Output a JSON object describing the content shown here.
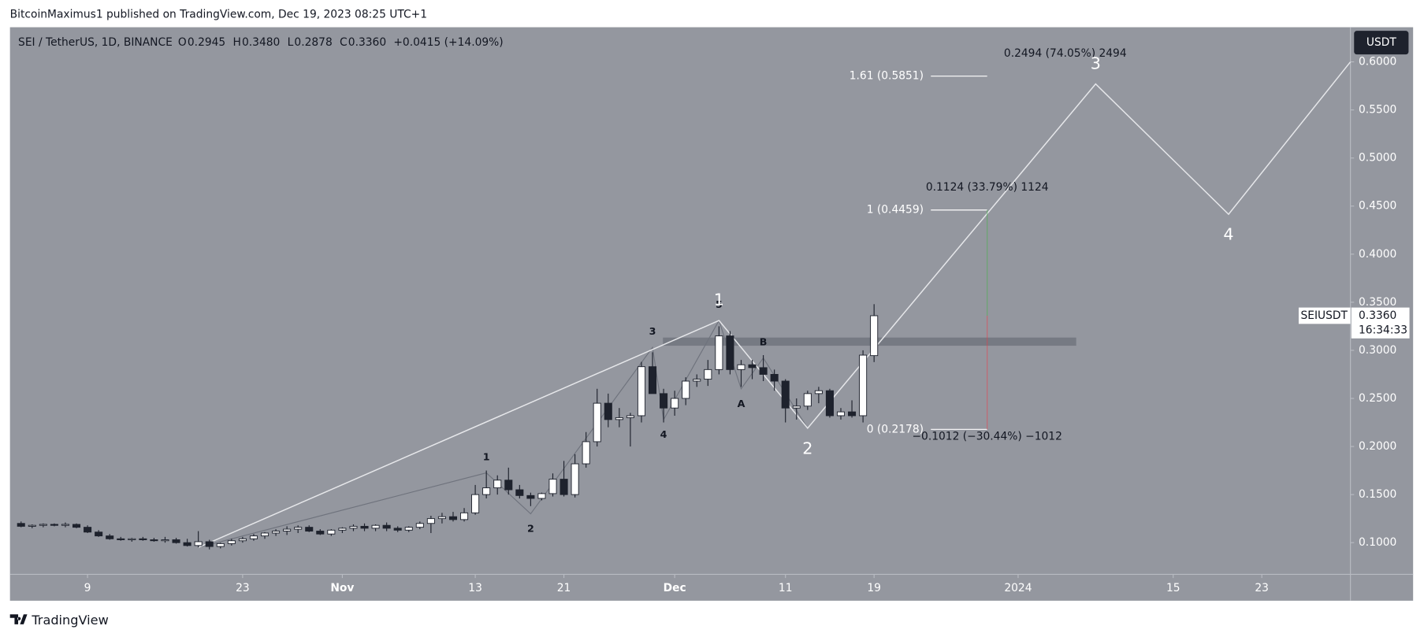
{
  "header": {
    "published": "BitcoinMaximus1 published on TradingView.com, Dec 19, 2023 08:25 UTC+1"
  },
  "footer": {
    "brand": "TradingView"
  },
  "chart_data": {
    "type": "candlestick",
    "legend": {
      "symbol": "SEI / TetherUS, 1D, BINANCE",
      "fields": [
        {
          "key": "O",
          "value": "0.2945"
        },
        {
          "key": "H",
          "value": "0.3480"
        },
        {
          "key": "L",
          "value": "0.2878"
        },
        {
          "key": "C",
          "value": "0.3360"
        }
      ],
      "change": "+0.0415 (+14.09%)"
    },
    "currency": "USDT",
    "last_price": {
      "symbol": "SEIUSDT",
      "value": 0.336,
      "label": "0.3360",
      "countdown": "16:34:33"
    },
    "x": [
      "2023-10-03",
      "2023-10-04",
      "2023-10-05",
      "2023-10-06",
      "2023-10-07",
      "2023-10-08",
      "2023-10-09",
      "2023-10-10",
      "2023-10-11",
      "2023-10-12",
      "2023-10-13",
      "2023-10-14",
      "2023-10-15",
      "2023-10-16",
      "2023-10-17",
      "2023-10-18",
      "2023-10-19",
      "2023-10-20",
      "2023-10-21",
      "2023-10-22",
      "2023-10-23",
      "2023-10-24",
      "2023-10-25",
      "2023-10-26",
      "2023-10-27",
      "2023-10-28",
      "2023-10-29",
      "2023-10-30",
      "2023-10-31",
      "2023-11-01",
      "2023-11-02",
      "2023-11-03",
      "2023-11-04",
      "2023-11-05",
      "2023-11-06",
      "2023-11-07",
      "2023-11-08",
      "2023-11-09",
      "2023-11-10",
      "2023-11-11",
      "2023-11-12",
      "2023-11-13",
      "2023-11-14",
      "2023-11-15",
      "2023-11-16",
      "2023-11-17",
      "2023-11-18",
      "2023-11-19",
      "2023-11-20",
      "2023-11-21",
      "2023-11-22",
      "2023-11-23",
      "2023-11-24",
      "2023-11-25",
      "2023-11-26",
      "2023-11-27",
      "2023-11-28",
      "2023-11-29",
      "2023-11-30",
      "2023-12-01",
      "2023-12-02",
      "2023-12-03",
      "2023-12-04",
      "2023-12-05",
      "2023-12-06",
      "2023-12-07",
      "2023-12-08",
      "2023-12-09",
      "2023-12-10",
      "2023-12-11",
      "2023-12-12",
      "2023-12-13",
      "2023-12-14",
      "2023-12-15",
      "2023-12-16",
      "2023-12-17",
      "2023-12-18",
      "2023-12-19"
    ],
    "open": [
      0.12,
      0.117,
      0.118,
      0.119,
      0.118,
      0.119,
      0.116,
      0.111,
      0.107,
      0.104,
      0.103,
      0.104,
      0.103,
      0.102,
      0.103,
      0.1,
      0.097,
      0.101,
      0.096,
      0.099,
      0.102,
      0.104,
      0.107,
      0.11,
      0.112,
      0.114,
      0.116,
      0.112,
      0.109,
      0.113,
      0.115,
      0.117,
      0.115,
      0.118,
      0.115,
      0.113,
      0.116,
      0.12,
      0.125,
      0.127,
      0.124,
      0.131,
      0.15,
      0.157,
      0.165,
      0.155,
      0.149,
      0.146,
      0.151,
      0.166,
      0.15,
      0.182,
      0.205,
      0.245,
      0.228,
      0.23,
      0.232,
      0.283,
      0.255,
      0.24,
      0.25,
      0.268,
      0.27,
      0.28,
      0.315,
      0.28,
      0.285,
      0.282,
      0.275,
      0.268,
      0.24,
      0.242,
      0.255,
      0.258,
      0.232,
      0.236,
      0.232,
      0.2945
    ],
    "high": [
      0.122,
      0.119,
      0.12,
      0.12,
      0.121,
      0.12,
      0.118,
      0.113,
      0.109,
      0.106,
      0.105,
      0.106,
      0.105,
      0.106,
      0.105,
      0.104,
      0.112,
      0.103,
      0.1,
      0.104,
      0.106,
      0.109,
      0.111,
      0.114,
      0.117,
      0.118,
      0.118,
      0.114,
      0.114,
      0.116,
      0.119,
      0.12,
      0.119,
      0.121,
      0.117,
      0.117,
      0.122,
      0.128,
      0.131,
      0.132,
      0.136,
      0.16,
      0.175,
      0.17,
      0.178,
      0.16,
      0.152,
      0.152,
      0.172,
      0.185,
      0.192,
      0.215,
      0.26,
      0.255,
      0.24,
      0.235,
      0.288,
      0.298,
      0.26,
      0.258,
      0.272,
      0.275,
      0.29,
      0.325,
      0.32,
      0.29,
      0.29,
      0.295,
      0.28,
      0.27,
      0.25,
      0.258,
      0.262,
      0.26,
      0.24,
      0.248,
      0.3,
      0.348
    ],
    "low": [
      0.116,
      0.115,
      0.116,
      0.117,
      0.116,
      0.115,
      0.11,
      0.106,
      0.103,
      0.102,
      0.101,
      0.102,
      0.101,
      0.1,
      0.099,
      0.096,
      0.095,
      0.093,
      0.094,
      0.097,
      0.1,
      0.102,
      0.104,
      0.107,
      0.108,
      0.11,
      0.111,
      0.108,
      0.107,
      0.11,
      0.112,
      0.112,
      0.112,
      0.112,
      0.111,
      0.111,
      0.114,
      0.11,
      0.12,
      0.122,
      0.122,
      0.129,
      0.146,
      0.15,
      0.15,
      0.146,
      0.138,
      0.144,
      0.148,
      0.148,
      0.147,
      0.178,
      0.2,
      0.22,
      0.22,
      0.2,
      0.225,
      0.255,
      0.225,
      0.232,
      0.243,
      0.262,
      0.263,
      0.275,
      0.275,
      0.262,
      0.27,
      0.268,
      0.258,
      0.225,
      0.228,
      0.238,
      0.245,
      0.23,
      0.228,
      0.23,
      0.225,
      0.2878
    ],
    "close": [
      0.117,
      0.118,
      0.119,
      0.118,
      0.119,
      0.116,
      0.111,
      0.107,
      0.104,
      0.103,
      0.104,
      0.103,
      0.102,
      0.103,
      0.1,
      0.097,
      0.101,
      0.096,
      0.099,
      0.102,
      0.104,
      0.107,
      0.11,
      0.112,
      0.114,
      0.116,
      0.112,
      0.109,
      0.113,
      0.115,
      0.117,
      0.115,
      0.118,
      0.115,
      0.113,
      0.116,
      0.12,
      0.125,
      0.127,
      0.124,
      0.131,
      0.15,
      0.157,
      0.165,
      0.155,
      0.149,
      0.146,
      0.151,
      0.166,
      0.15,
      0.182,
      0.205,
      0.245,
      0.228,
      0.23,
      0.232,
      0.283,
      0.255,
      0.24,
      0.25,
      0.268,
      0.27,
      0.28,
      0.315,
      0.28,
      0.285,
      0.282,
      0.275,
      0.268,
      0.24,
      0.242,
      0.255,
      0.258,
      0.232,
      0.236,
      0.232,
      0.295,
      0.336
    ],
    "up_color": "#ffffff",
    "down_color": "#1e222d",
    "xlim": [
      "2023-10-02",
      "2024-01-31"
    ],
    "xticks": [
      {
        "value": "2023-10-09",
        "label": "9"
      },
      {
        "value": "2023-10-23",
        "label": "23"
      },
      {
        "value": "2023-11-01",
        "label": "Nov"
      },
      {
        "value": "2023-11-13",
        "label": "13"
      },
      {
        "value": "2023-11-21",
        "label": "21"
      },
      {
        "value": "2023-12-01",
        "label": "Dec"
      },
      {
        "value": "2023-12-11",
        "label": "11"
      },
      {
        "value": "2023-12-19",
        "label": "19"
      },
      {
        "value": "2024-01-01",
        "label": "2024"
      },
      {
        "value": "2024-01-15",
        "label": "15"
      },
      {
        "value": "2024-01-23",
        "label": "23"
      }
    ],
    "ylim": [
      0.067,
      0.636
    ],
    "yticks": [
      {
        "value": 0.1,
        "label": "0.1000"
      },
      {
        "value": 0.15,
        "label": "0.1500"
      },
      {
        "value": 0.2,
        "label": "0.2000"
      },
      {
        "value": 0.25,
        "label": "0.2500"
      },
      {
        "value": 0.3,
        "label": "0.3000"
      },
      {
        "value": 0.35,
        "label": "0.3500"
      },
      {
        "value": 0.4,
        "label": "0.4000"
      },
      {
        "value": 0.45,
        "label": "0.4500"
      },
      {
        "value": 0.5,
        "label": "0.5000"
      },
      {
        "value": 0.55,
        "label": "0.5500"
      },
      {
        "value": 0.6,
        "label": "0.6000"
      }
    ],
    "fibs": [
      {
        "label": "1.61 (0.5851)",
        "price": 0.5851,
        "measure": "0.2494 (74.05%) 2494"
      },
      {
        "label": "1 (0.4459)",
        "price": 0.4459,
        "measure": "0.1124 (33.79%) 1124"
      },
      {
        "label": "0 (0.2178)",
        "price": 0.2178,
        "measure": "−0.1012 (−30.44%) −1012"
      }
    ],
    "waves": {
      "major": {
        "color": "#e6e7ea",
        "points": [
          {
            "x": "2023-10-19",
            "price": 0.095
          },
          {
            "x": "2023-12-05",
            "price": 0.331,
            "label": "1"
          },
          {
            "x": "2023-12-13",
            "price": 0.219,
            "label": "2"
          },
          {
            "x": "2024-01-08",
            "price": 0.577,
            "label": "3"
          },
          {
            "x": "2024-01-20",
            "price": 0.4415,
            "label": "4"
          },
          {
            "x": "2024-01-31",
            "price": 0.6
          }
        ]
      },
      "minor": {
        "color": "#6f737d",
        "points": [
          {
            "x": "2023-10-19",
            "price": 0.095
          },
          {
            "x": "2023-11-14",
            "price": 0.1726,
            "label": "1"
          },
          {
            "x": "2023-11-18",
            "price": 0.13,
            "label": "2"
          },
          {
            "x": "2023-11-29",
            "price": 0.303,
            "label": "3"
          },
          {
            "x": "2023-11-30",
            "price": 0.228,
            "label": "4"
          },
          {
            "x": "2023-12-05",
            "price": 0.331,
            "label": "5"
          },
          {
            "x": "2023-12-07",
            "price": 0.26,
            "label": "A"
          },
          {
            "x": "2023-12-09",
            "price": 0.292,
            "label": "B"
          },
          {
            "x": "2023-12-13",
            "price": 0.219
          }
        ]
      }
    }
  }
}
